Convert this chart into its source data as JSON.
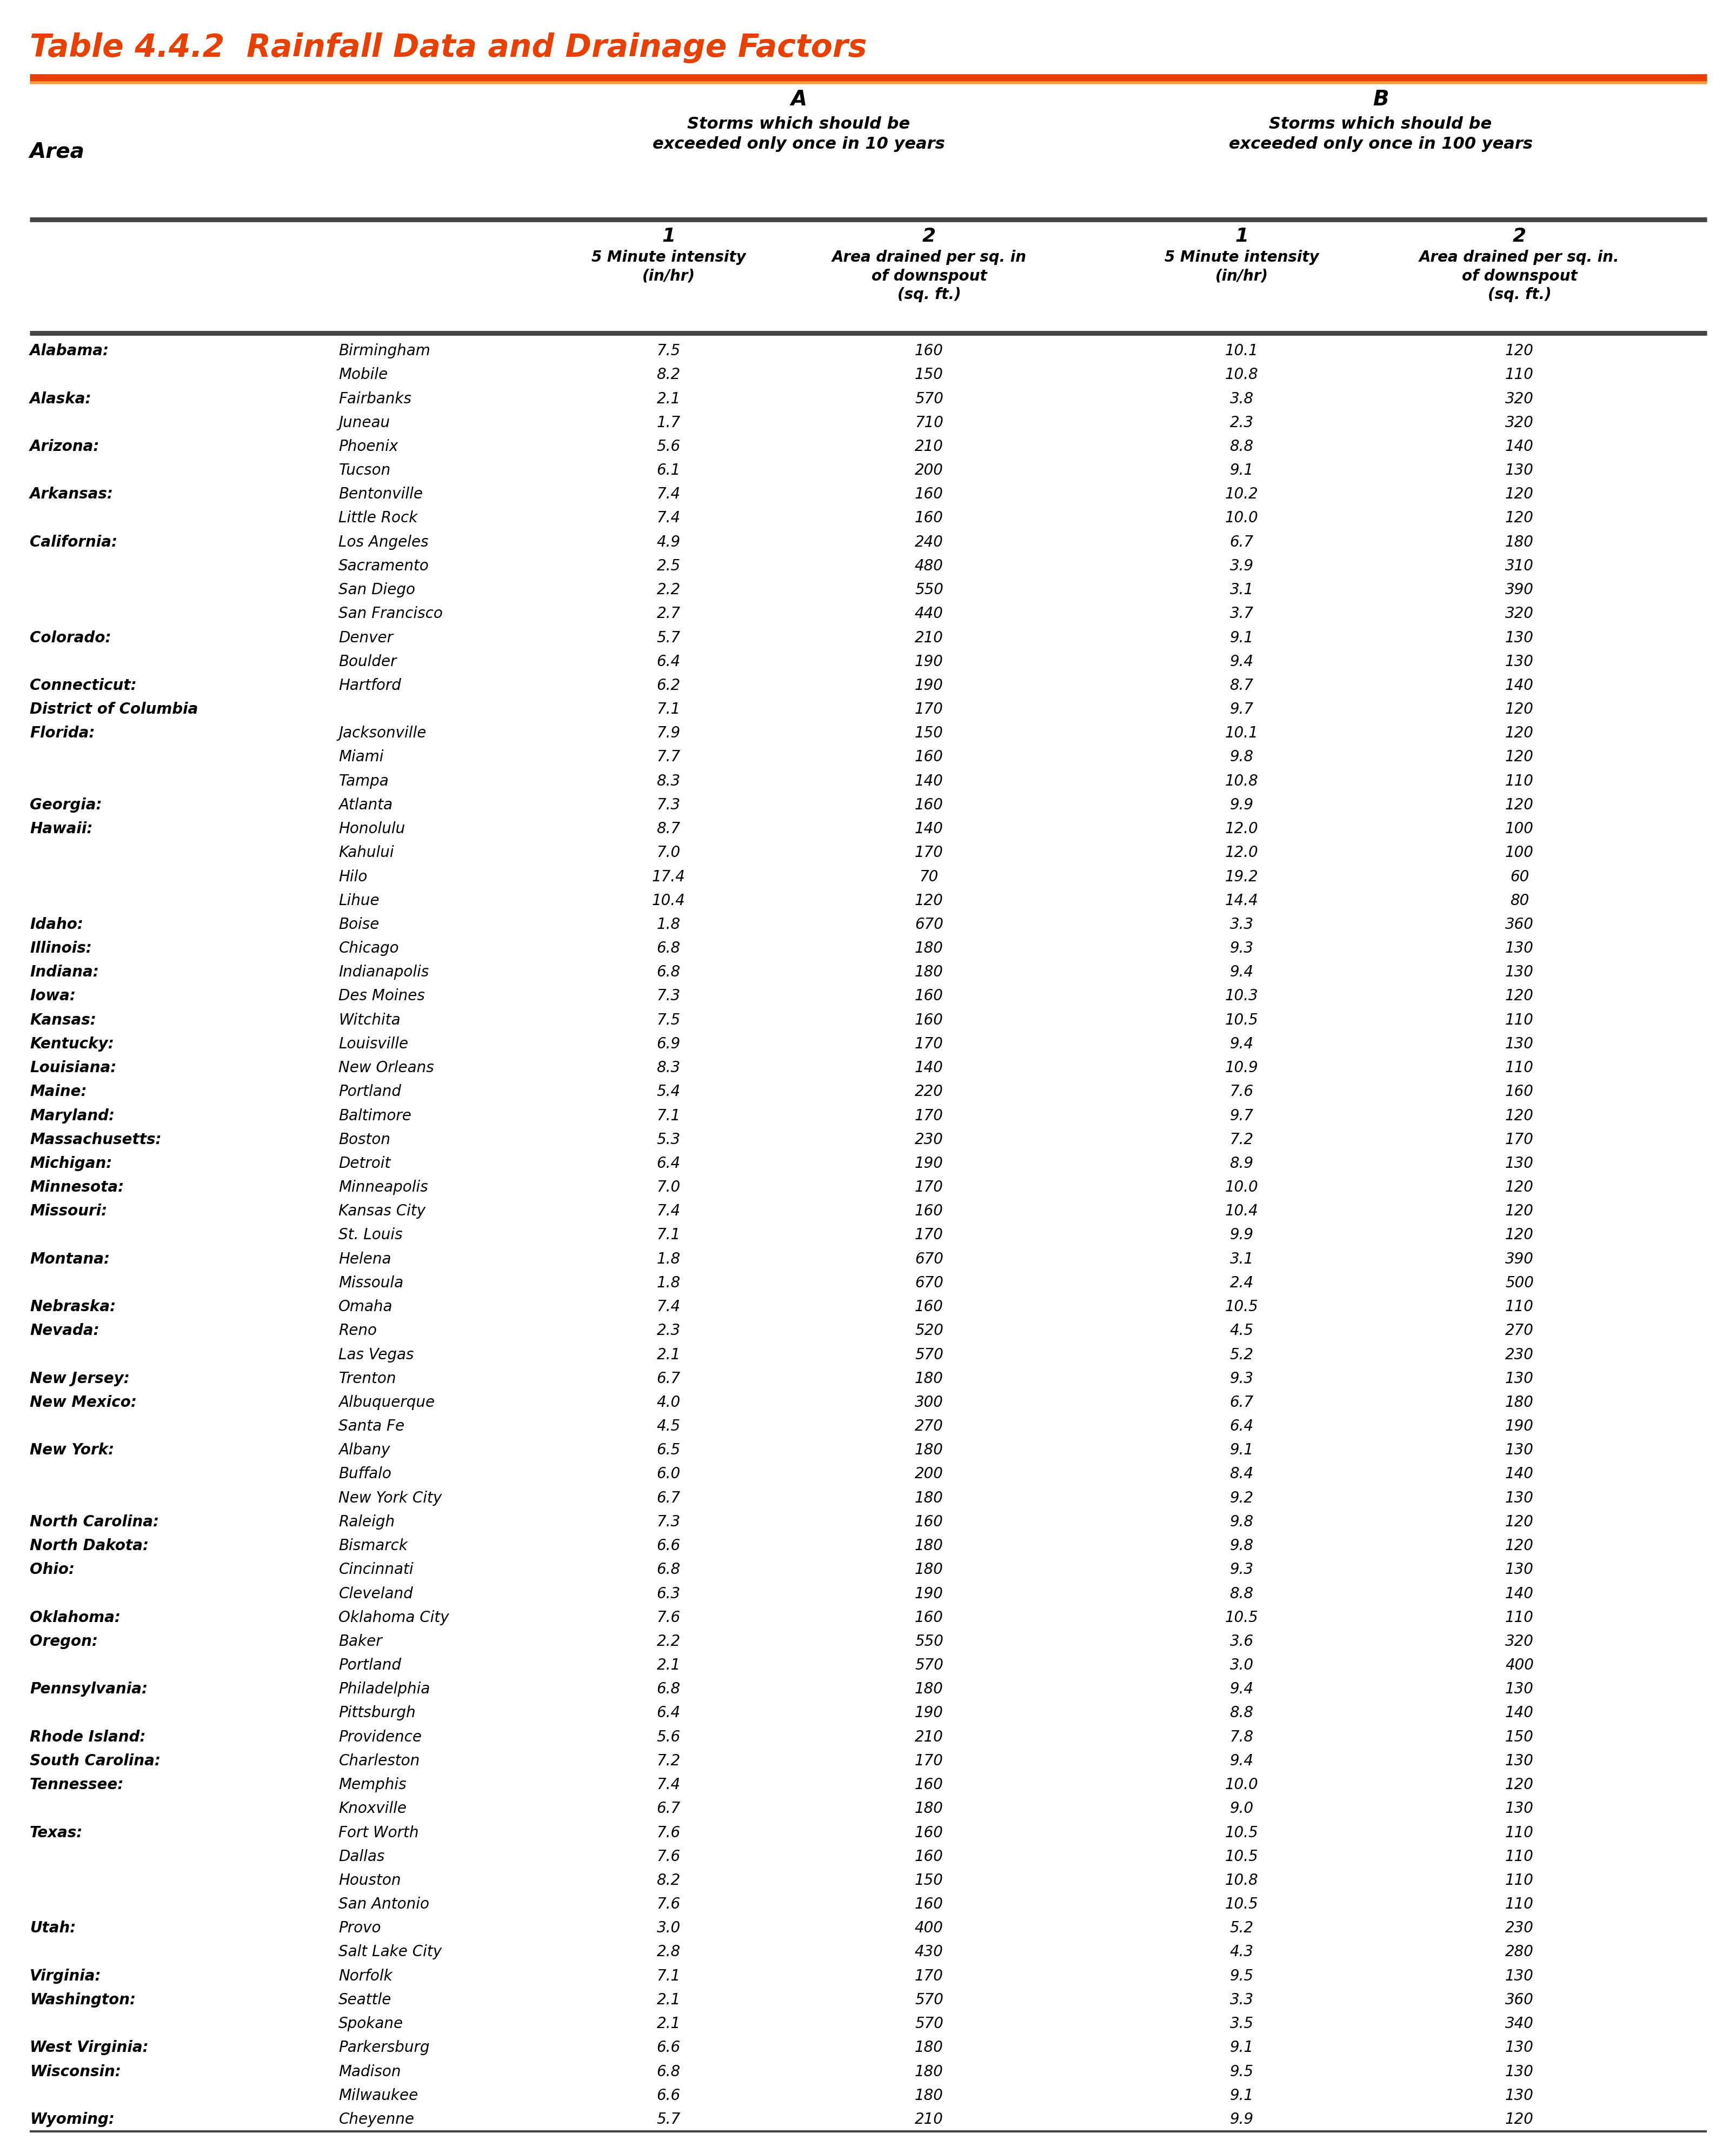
{
  "title": "Table 4.4.2  Rainfall Data and Drainage Factors",
  "title_color": "#E84000",
  "title_fontsize": 42,
  "header_line_color": "#E84000",
  "separator_color": "#444444",
  "background_color": "#ffffff",
  "rows": [
    [
      "Alabama:",
      "Birmingham",
      "7.5",
      "160",
      "10.1",
      "120"
    ],
    [
      "",
      "Mobile",
      "8.2",
      "150",
      "10.8",
      "110"
    ],
    [
      "Alaska:",
      "Fairbanks",
      "2.1",
      "570",
      "3.8",
      "320"
    ],
    [
      "",
      "Juneau",
      "1.7",
      "710",
      "2.3",
      "320"
    ],
    [
      "Arizona:",
      "Phoenix",
      "5.6",
      "210",
      "8.8",
      "140"
    ],
    [
      "",
      "Tucson",
      "6.1",
      "200",
      "9.1",
      "130"
    ],
    [
      "Arkansas:",
      "Bentonville",
      "7.4",
      "160",
      "10.2",
      "120"
    ],
    [
      "",
      "Little Rock",
      "7.4",
      "160",
      "10.0",
      "120"
    ],
    [
      "California:",
      "Los Angeles",
      "4.9",
      "240",
      "6.7",
      "180"
    ],
    [
      "",
      "Sacramento",
      "2.5",
      "480",
      "3.9",
      "310"
    ],
    [
      "",
      "San Diego",
      "2.2",
      "550",
      "3.1",
      "390"
    ],
    [
      "",
      "San Francisco",
      "2.7",
      "440",
      "3.7",
      "320"
    ],
    [
      "Colorado:",
      "Denver",
      "5.7",
      "210",
      "9.1",
      "130"
    ],
    [
      "",
      "Boulder",
      "6.4",
      "190",
      "9.4",
      "130"
    ],
    [
      "Connecticut:",
      "Hartford",
      "6.2",
      "190",
      "8.7",
      "140"
    ],
    [
      "District of Columbia",
      "",
      "7.1",
      "170",
      "9.7",
      "120"
    ],
    [
      "Florida:",
      "Jacksonville",
      "7.9",
      "150",
      "10.1",
      "120"
    ],
    [
      "",
      "Miami",
      "7.7",
      "160",
      "9.8",
      "120"
    ],
    [
      "",
      "Tampa",
      "8.3",
      "140",
      "10.8",
      "110"
    ],
    [
      "Georgia:",
      "Atlanta",
      "7.3",
      "160",
      "9.9",
      "120"
    ],
    [
      "Hawaii:",
      "Honolulu",
      "8.7",
      "140",
      "12.0",
      "100"
    ],
    [
      "",
      "Kahului",
      "7.0",
      "170",
      "12.0",
      "100"
    ],
    [
      "",
      "Hilo",
      "17.4",
      "70",
      "19.2",
      "60"
    ],
    [
      "",
      "Lihue",
      "10.4",
      "120",
      "14.4",
      "80"
    ],
    [
      "Idaho:",
      "Boise",
      "1.8",
      "670",
      "3.3",
      "360"
    ],
    [
      "Illinois:",
      "Chicago",
      "6.8",
      "180",
      "9.3",
      "130"
    ],
    [
      "Indiana:",
      "Indianapolis",
      "6.8",
      "180",
      "9.4",
      "130"
    ],
    [
      "Iowa:",
      "Des Moines",
      "7.3",
      "160",
      "10.3",
      "120"
    ],
    [
      "Kansas:",
      "Witchita",
      "7.5",
      "160",
      "10.5",
      "110"
    ],
    [
      "Kentucky:",
      "Louisville",
      "6.9",
      "170",
      "9.4",
      "130"
    ],
    [
      "Louisiana:",
      "New Orleans",
      "8.3",
      "140",
      "10.9",
      "110"
    ],
    [
      "Maine:",
      "Portland",
      "5.4",
      "220",
      "7.6",
      "160"
    ],
    [
      "Maryland:",
      "Baltimore",
      "7.1",
      "170",
      "9.7",
      "120"
    ],
    [
      "Massachusetts:",
      "Boston",
      "5.3",
      "230",
      "7.2",
      "170"
    ],
    [
      "Michigan:",
      "Detroit",
      "6.4",
      "190",
      "8.9",
      "130"
    ],
    [
      "Minnesota:",
      "Minneapolis",
      "7.0",
      "170",
      "10.0",
      "120"
    ],
    [
      "Missouri:",
      "Kansas City",
      "7.4",
      "160",
      "10.4",
      "120"
    ],
    [
      "",
      "St. Louis",
      "7.1",
      "170",
      "9.9",
      "120"
    ],
    [
      "Montana:",
      "Helena",
      "1.8",
      "670",
      "3.1",
      "390"
    ],
    [
      "",
      "Missoula",
      "1.8",
      "670",
      "2.4",
      "500"
    ],
    [
      "Nebraska:",
      "Omaha",
      "7.4",
      "160",
      "10.5",
      "110"
    ],
    [
      "Nevada:",
      "Reno",
      "2.3",
      "520",
      "4.5",
      "270"
    ],
    [
      "",
      "Las Vegas",
      "2.1",
      "570",
      "5.2",
      "230"
    ],
    [
      "New Jersey:",
      "Trenton",
      "6.7",
      "180",
      "9.3",
      "130"
    ],
    [
      "New Mexico:",
      "Albuquerque",
      "4.0",
      "300",
      "6.7",
      "180"
    ],
    [
      "",
      "Santa Fe",
      "4.5",
      "270",
      "6.4",
      "190"
    ],
    [
      "New York:",
      "Albany",
      "6.5",
      "180",
      "9.1",
      "130"
    ],
    [
      "",
      "Buffalo",
      "6.0",
      "200",
      "8.4",
      "140"
    ],
    [
      "",
      "New York City",
      "6.7",
      "180",
      "9.2",
      "130"
    ],
    [
      "North Carolina:",
      "Raleigh",
      "7.3",
      "160",
      "9.8",
      "120"
    ],
    [
      "North Dakota:",
      "Bismarck",
      "6.6",
      "180",
      "9.8",
      "120"
    ],
    [
      "Ohio:",
      "Cincinnati",
      "6.8",
      "180",
      "9.3",
      "130"
    ],
    [
      "",
      "Cleveland",
      "6.3",
      "190",
      "8.8",
      "140"
    ],
    [
      "Oklahoma:",
      "Oklahoma City",
      "7.6",
      "160",
      "10.5",
      "110"
    ],
    [
      "Oregon:",
      "Baker",
      "2.2",
      "550",
      "3.6",
      "320"
    ],
    [
      "",
      "Portland",
      "2.1",
      "570",
      "3.0",
      "400"
    ],
    [
      "Pennsylvania:",
      "Philadelphia",
      "6.8",
      "180",
      "9.4",
      "130"
    ],
    [
      "",
      "Pittsburgh",
      "6.4",
      "190",
      "8.8",
      "140"
    ],
    [
      "Rhode Island:",
      "Providence",
      "5.6",
      "210",
      "7.8",
      "150"
    ],
    [
      "South Carolina:",
      "Charleston",
      "7.2",
      "170",
      "9.4",
      "130"
    ],
    [
      "Tennessee:",
      "Memphis",
      "7.4",
      "160",
      "10.0",
      "120"
    ],
    [
      "",
      "Knoxville",
      "6.7",
      "180",
      "9.0",
      "130"
    ],
    [
      "Texas:",
      "Fort Worth",
      "7.6",
      "160",
      "10.5",
      "110"
    ],
    [
      "",
      "Dallas",
      "7.6",
      "160",
      "10.5",
      "110"
    ],
    [
      "",
      "Houston",
      "8.2",
      "150",
      "10.8",
      "110"
    ],
    [
      "",
      "San Antonio",
      "7.6",
      "160",
      "10.5",
      "110"
    ],
    [
      "Utah:",
      "Provo",
      "3.0",
      "400",
      "5.2",
      "230"
    ],
    [
      "",
      "Salt Lake City",
      "2.8",
      "430",
      "4.3",
      "280"
    ],
    [
      "Virginia:",
      "Norfolk",
      "7.1",
      "170",
      "9.5",
      "130"
    ],
    [
      "Washington:",
      "Seattle",
      "2.1",
      "570",
      "3.3",
      "360"
    ],
    [
      "",
      "Spokane",
      "2.1",
      "570",
      "3.5",
      "340"
    ],
    [
      "West Virginia:",
      "Parkersburg",
      "6.6",
      "180",
      "9.1",
      "130"
    ],
    [
      "Wisconsin:",
      "Madison",
      "6.8",
      "180",
      "9.5",
      "130"
    ],
    [
      "",
      "Milwaukee",
      "6.6",
      "180",
      "9.1",
      "130"
    ],
    [
      "Wyoming:",
      "Cheyenne",
      "5.7",
      "210",
      "9.9",
      "120"
    ]
  ]
}
